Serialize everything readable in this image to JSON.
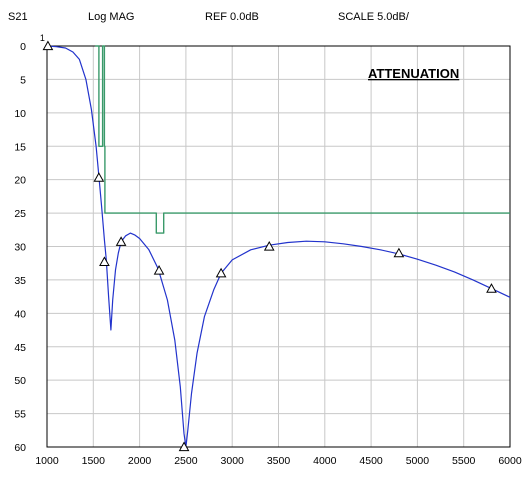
{
  "header": {
    "param": "S21",
    "format": "Log MAG",
    "ref": "REF  0.0dB",
    "scale": "SCALE  5.0dB/"
  },
  "annotation": "ATTENUATION",
  "marker_label": "1",
  "chart_data": {
    "type": "line",
    "title": "",
    "xlabel": "",
    "ylabel": "",
    "xlim": [
      1000,
      6000
    ],
    "ylim": [
      0,
      60
    ],
    "y_inverted": true,
    "grid": true,
    "x_ticks": [
      1000,
      1500,
      2000,
      2500,
      3000,
      3500,
      4000,
      4500,
      5000,
      5500,
      6000
    ],
    "y_ticks": [
      0,
      5,
      10,
      15,
      20,
      25,
      30,
      35,
      40,
      45,
      50,
      55,
      60
    ],
    "colors": {
      "trace": "#2233cc",
      "limit": "#3a9a6a",
      "grid": "#c8c8c8"
    },
    "series": [
      {
        "kind": "trace",
        "points": [
          [
            1000,
            0.0
          ],
          [
            1100,
            0.1
          ],
          [
            1200,
            0.3
          ],
          [
            1280,
            0.9
          ],
          [
            1350,
            2.0
          ],
          [
            1420,
            5.0
          ],
          [
            1480,
            9.5
          ],
          [
            1530,
            15.0
          ],
          [
            1560,
            19.5
          ],
          [
            1590,
            24.0
          ],
          [
            1620,
            29.0
          ],
          [
            1640,
            32.0
          ],
          [
            1665,
            37.5
          ],
          [
            1690,
            42.5
          ],
          [
            1710,
            38.0
          ],
          [
            1740,
            33.5
          ],
          [
            1770,
            31.0
          ],
          [
            1800,
            29.3
          ],
          [
            1850,
            28.4
          ],
          [
            1900,
            28.0
          ],
          [
            1950,
            28.3
          ],
          [
            2000,
            28.8
          ],
          [
            2100,
            30.5
          ],
          [
            2200,
            33.3
          ],
          [
            2300,
            38.0
          ],
          [
            2380,
            44.0
          ],
          [
            2440,
            51.0
          ],
          [
            2480,
            58.0
          ],
          [
            2500,
            60.0
          ],
          [
            2520,
            57.5
          ],
          [
            2560,
            52.0
          ],
          [
            2620,
            46.0
          ],
          [
            2700,
            40.5
          ],
          [
            2800,
            36.5
          ],
          [
            2880,
            34.0
          ],
          [
            3000,
            32.0
          ],
          [
            3200,
            30.5
          ],
          [
            3400,
            29.8
          ],
          [
            3600,
            29.4
          ],
          [
            3800,
            29.2
          ],
          [
            4000,
            29.3
          ],
          [
            4200,
            29.6
          ],
          [
            4400,
            30.0
          ],
          [
            4600,
            30.5
          ],
          [
            4800,
            31.1
          ],
          [
            5000,
            31.9
          ],
          [
            5200,
            32.8
          ],
          [
            5400,
            33.8
          ],
          [
            5600,
            35.0
          ],
          [
            5800,
            36.3
          ],
          [
            6000,
            37.6
          ]
        ]
      },
      {
        "kind": "limit",
        "points": [
          [
            1520,
            0
          ],
          [
            1560,
            0
          ],
          [
            1560,
            15
          ],
          [
            1600,
            15
          ],
          [
            1600,
            0
          ],
          [
            1620,
            0
          ],
          [
            1620,
            15
          ],
          [
            1625,
            15
          ],
          [
            1625,
            25
          ],
          [
            2180,
            25
          ],
          [
            2180,
            28
          ],
          [
            2260,
            28
          ],
          [
            2260,
            25
          ],
          [
            6000,
            25
          ]
        ]
      }
    ],
    "markers": [
      [
        1010,
        0.0
      ],
      [
        1560,
        19.7
      ],
      [
        1620,
        32.3
      ],
      [
        1800,
        29.3
      ],
      [
        2210,
        33.6
      ],
      [
        2480,
        60.0
      ],
      [
        2880,
        34.0
      ],
      [
        3400,
        30.0
      ],
      [
        4800,
        31.0
      ],
      [
        5800,
        36.3
      ]
    ]
  }
}
